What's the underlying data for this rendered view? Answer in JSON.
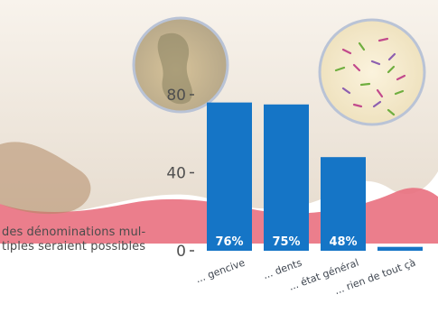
{
  "note": "des dénominations mul-\ntiples seraient possibles",
  "colors": {
    "bar": "#1575c6",
    "value_label": "#ffffff",
    "tick_label": "#4f4f4f",
    "gum": "#e9707f",
    "tooth": "#f3ede4"
  },
  "background_illustration": [
    "tooth-illustration",
    "tartar-zoom-circle",
    "bacteria-zoom-circle"
  ],
  "chart_data": {
    "type": "bar",
    "categories": [
      "... gencive",
      "... dents",
      "... état général",
      "... rien de tout çà"
    ],
    "values": [
      76,
      75,
      48,
      2
    ],
    "value_labels": [
      "76%",
      "75%",
      "48%",
      ""
    ],
    "yticks": [
      "0",
      "40",
      "80"
    ],
    "ylim": [
      0,
      86
    ],
    "grid": false,
    "title": "",
    "xlabel": "",
    "ylabel": ""
  }
}
